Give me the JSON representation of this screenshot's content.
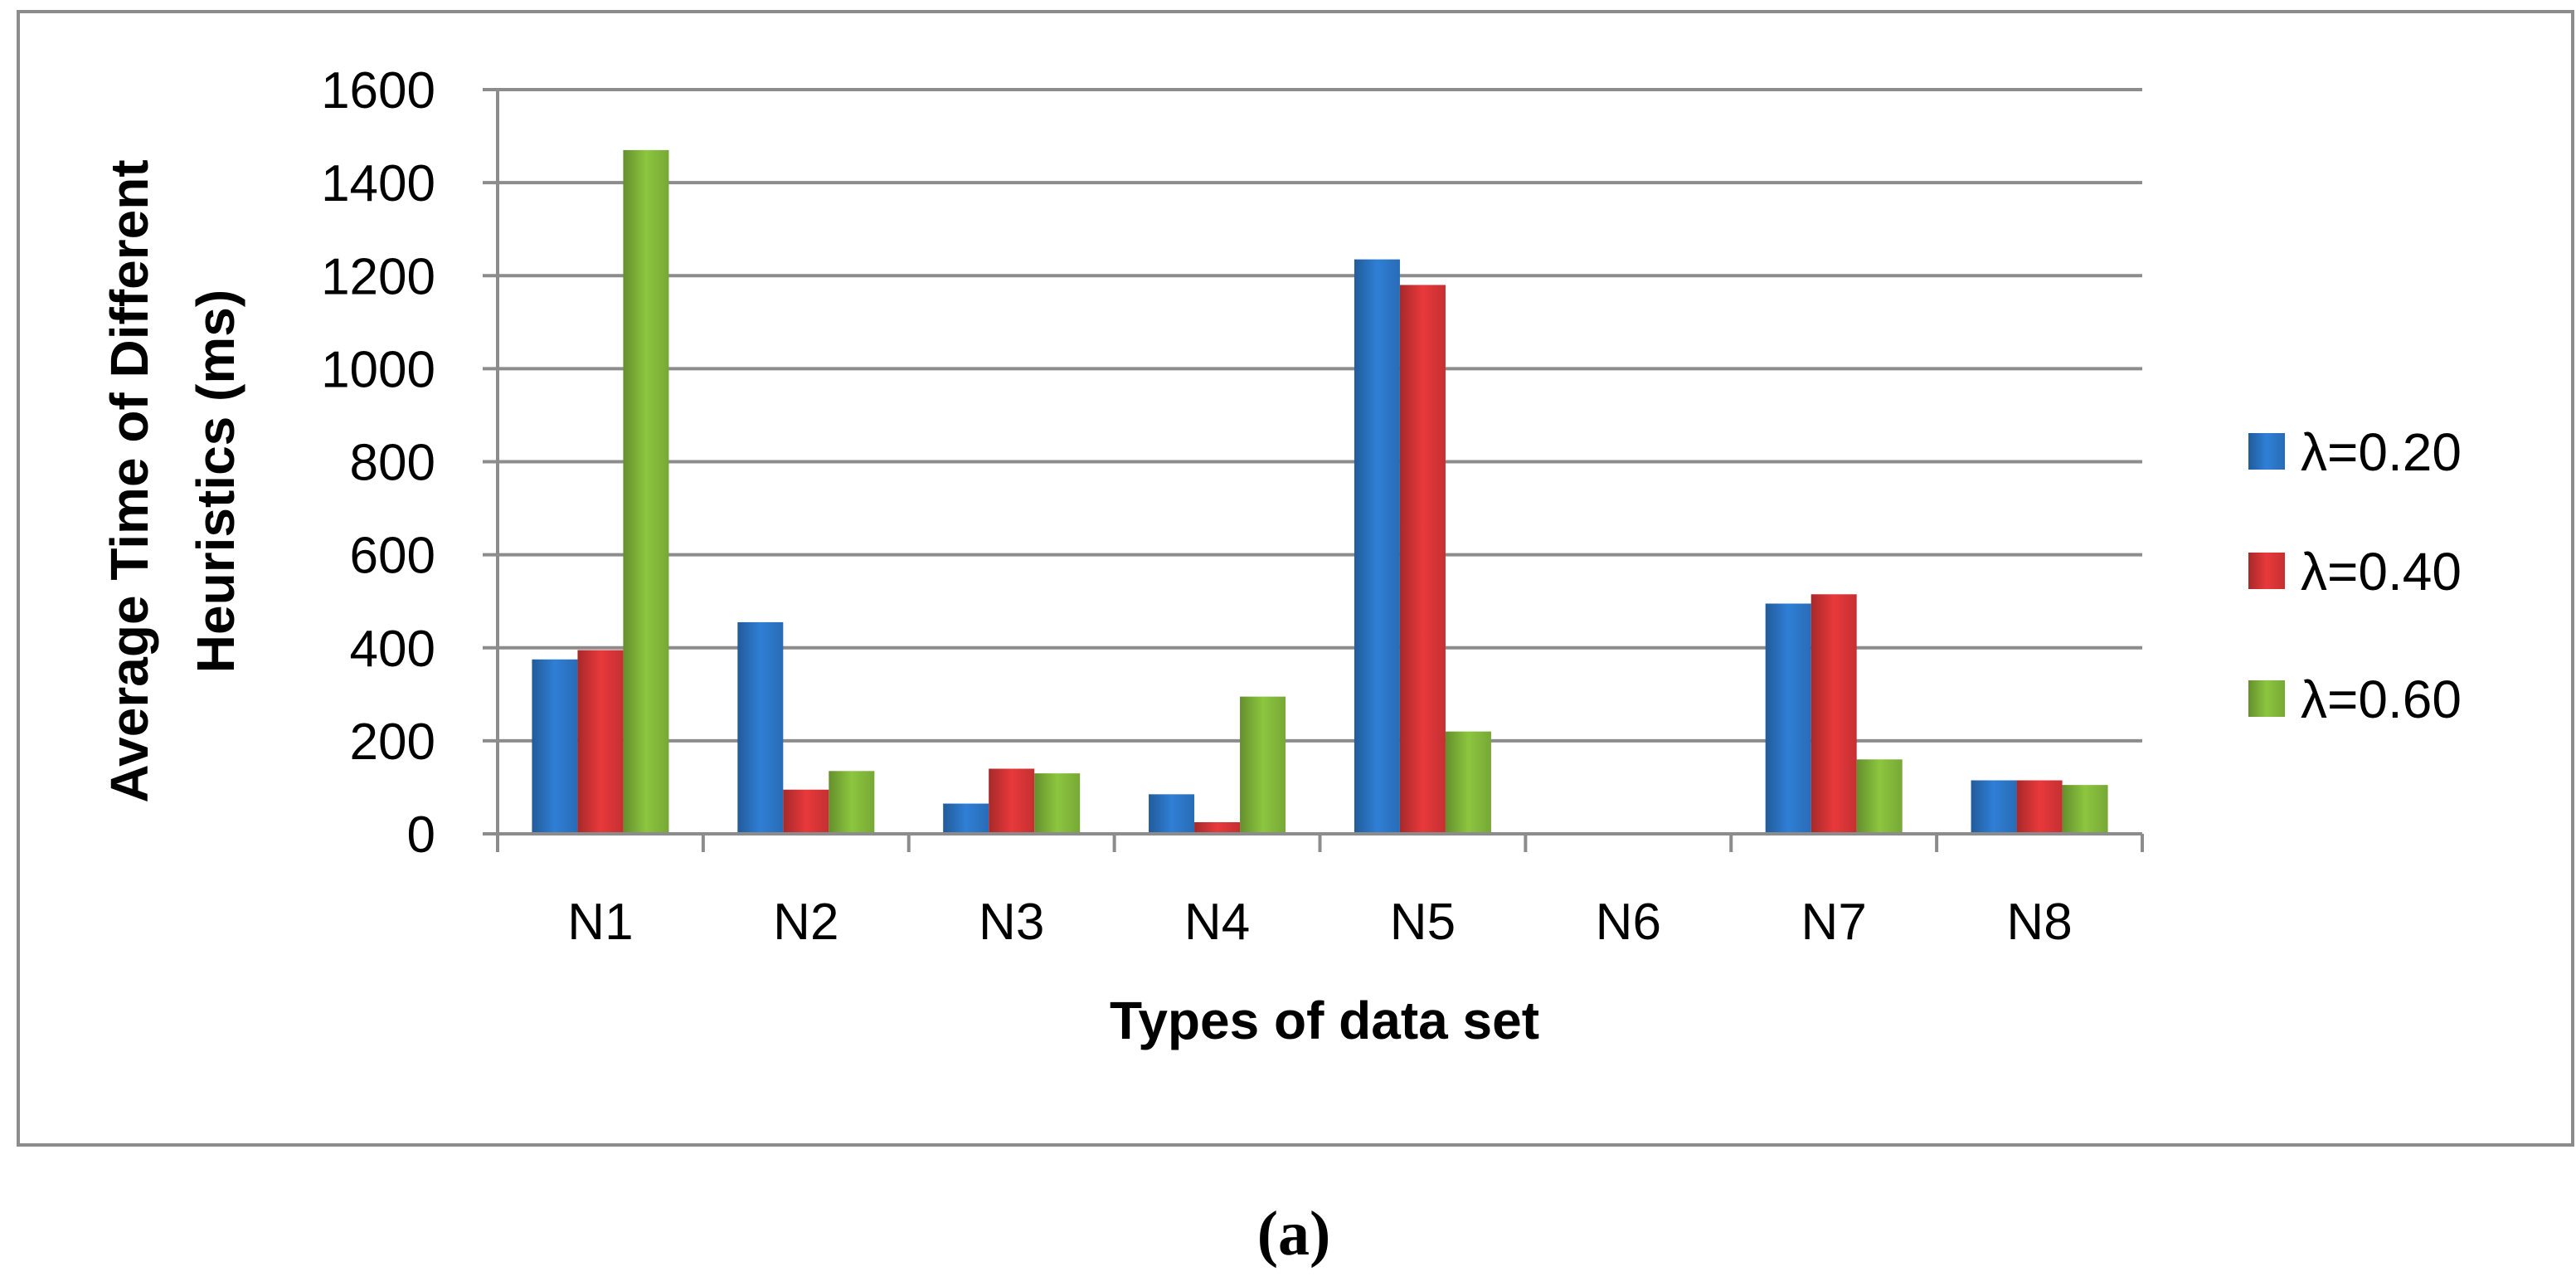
{
  "chart_data": {
    "type": "bar",
    "title": "",
    "xlabel": "Types of data set",
    "ylabel": "Average Time of Different Heuristics (ms)",
    "ylabel_lines": [
      "Average Time of Different",
      "Heuristics (ms)"
    ],
    "categories": [
      "N1",
      "N2",
      "N3",
      "N4",
      "N5",
      "N6",
      "N7",
      "N8"
    ],
    "series": [
      {
        "name": "λ=0.20",
        "color": "#2f7fd6",
        "values": [
          375,
          455,
          65,
          85,
          1235,
          2,
          495,
          115
        ]
      },
      {
        "name": "λ=0.40",
        "color": "#e8393b",
        "values": [
          395,
          95,
          140,
          25,
          1180,
          2,
          515,
          115
        ]
      },
      {
        "name": "λ=0.60",
        "color": "#8cc63f",
        "values": [
          1470,
          135,
          130,
          295,
          220,
          2,
          160,
          105
        ]
      }
    ],
    "ylim": [
      0,
      1600
    ],
    "yticks": [
      0,
      200,
      400,
      600,
      800,
      1000,
      1200,
      1400,
      1600
    ],
    "grid": true,
    "legend_position": "right"
  },
  "caption": "(a)"
}
